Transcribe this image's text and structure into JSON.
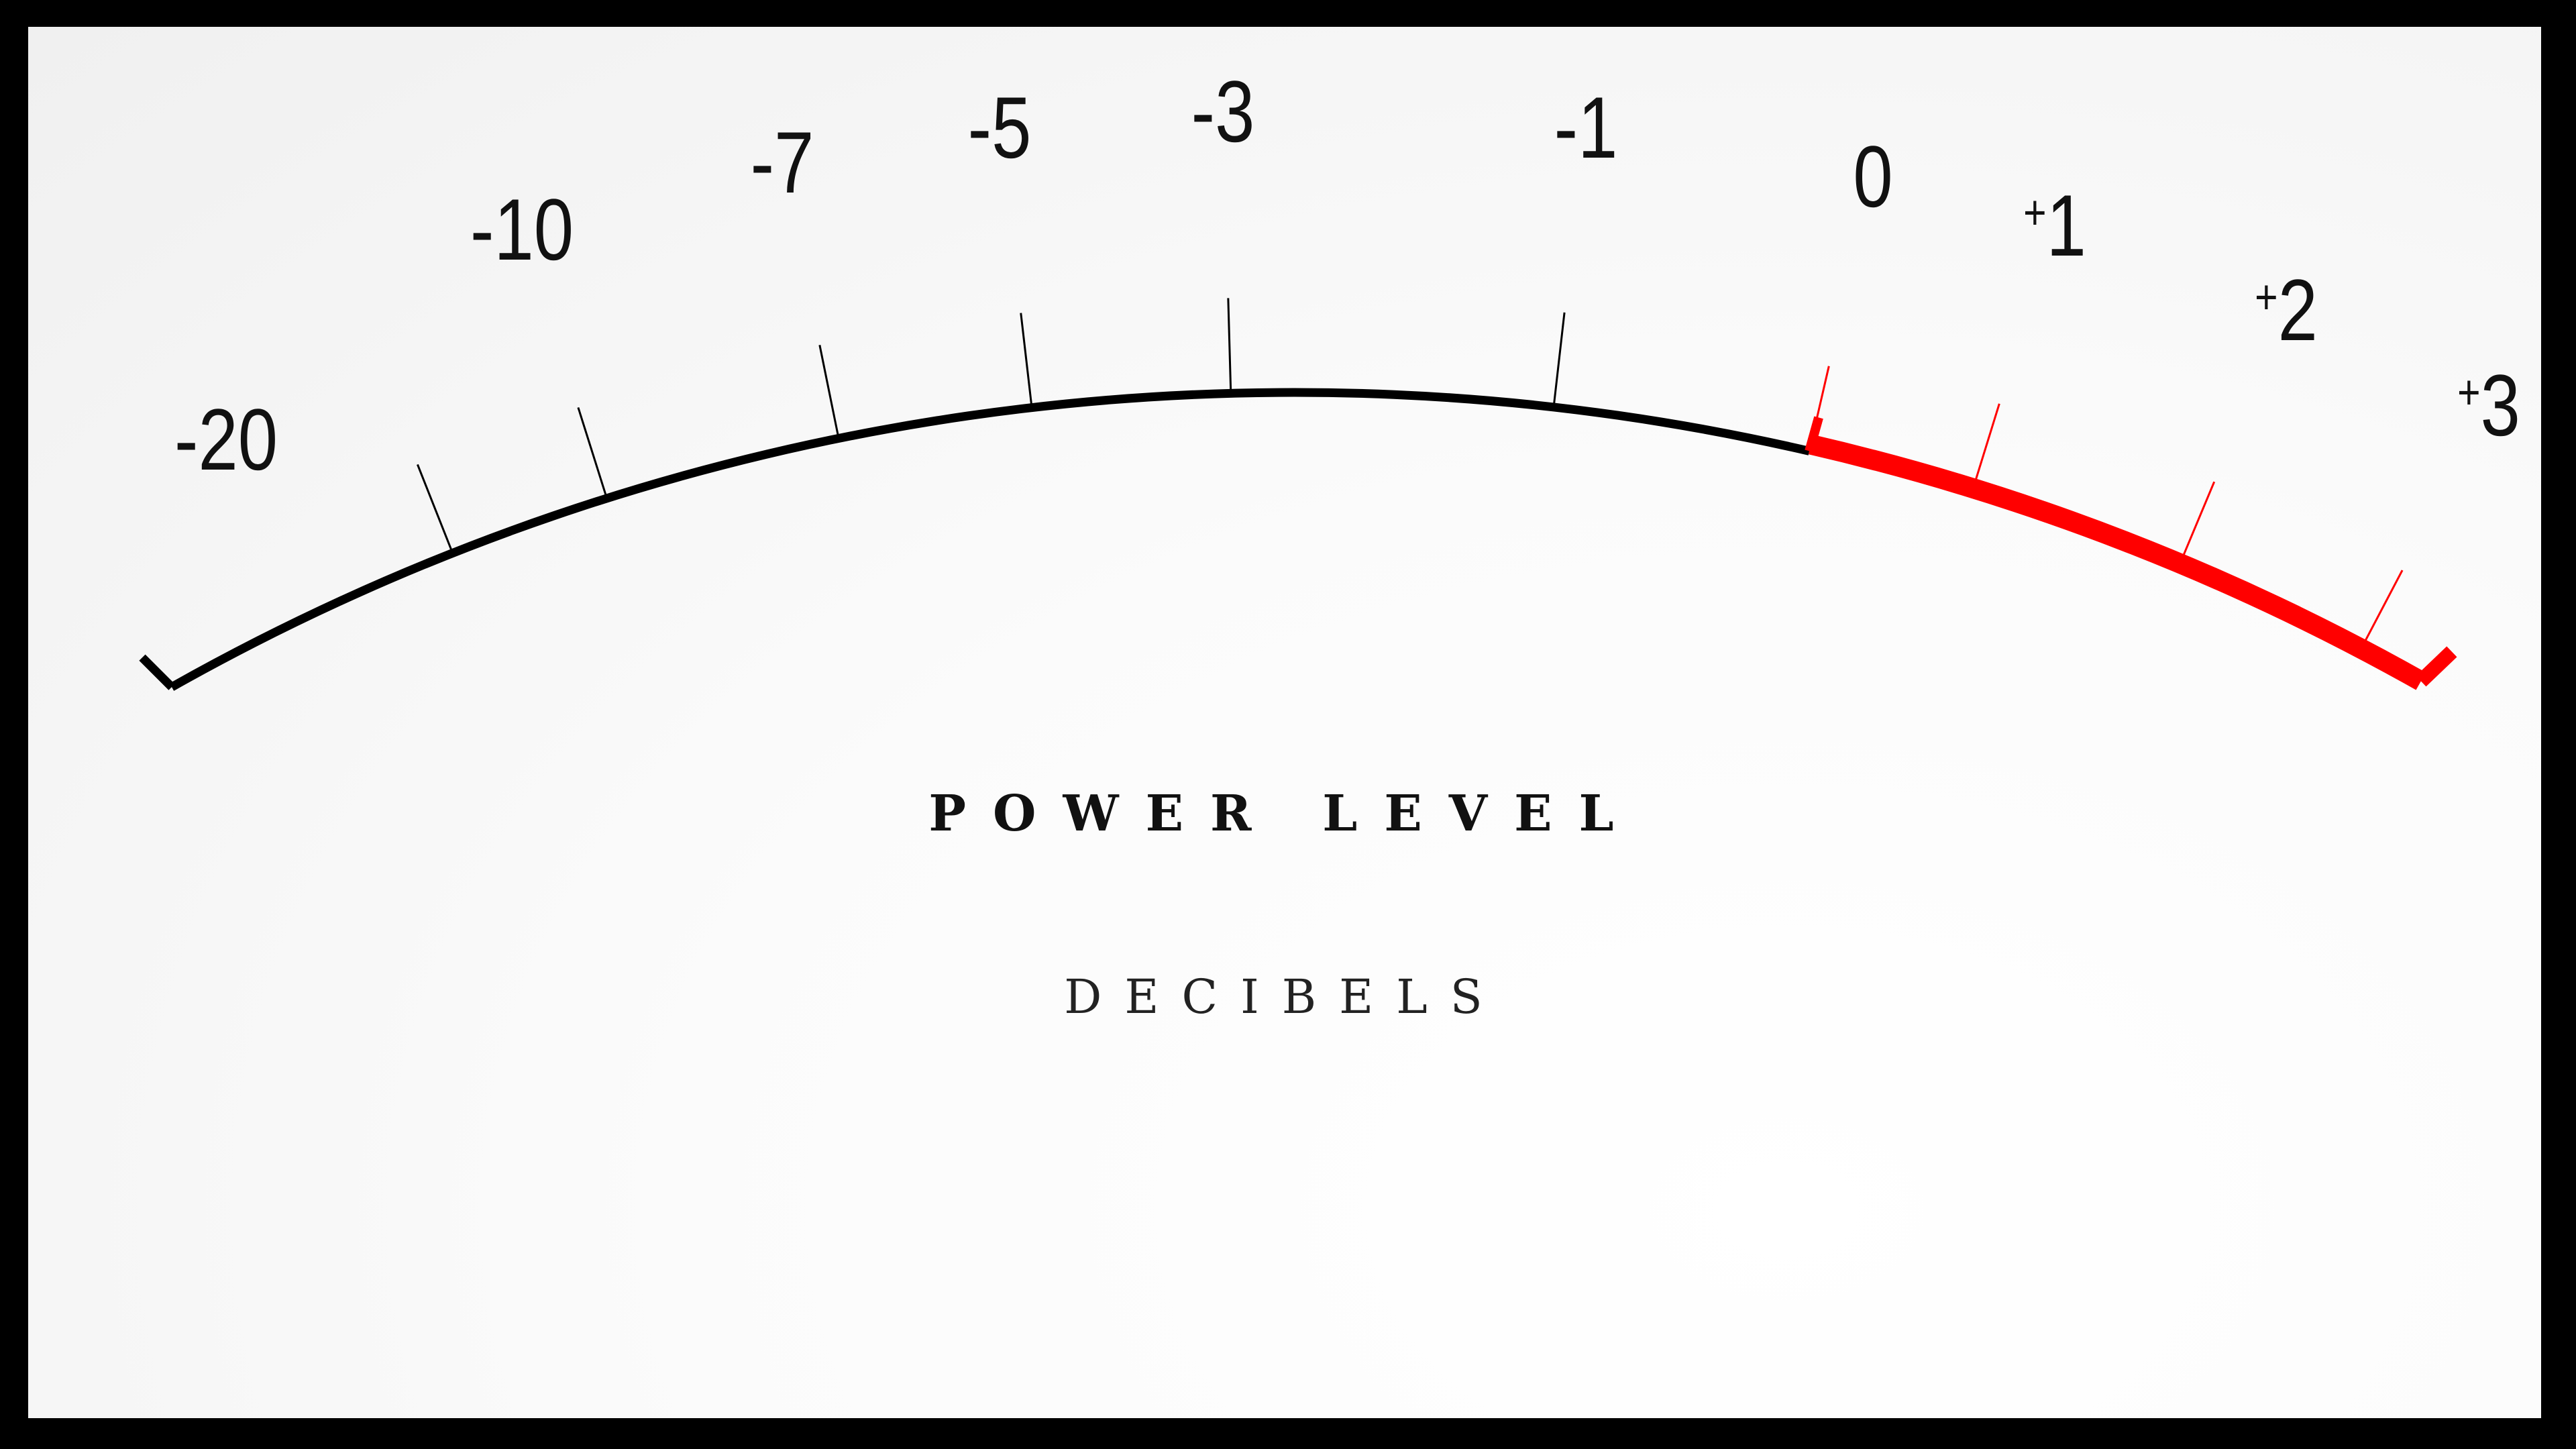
{
  "meter": {
    "title": "POWER LEVEL",
    "subtitle": "DECIBELS",
    "scale": [
      {
        "label": "-20",
        "sign": "",
        "num": "-20"
      },
      {
        "label": "-10",
        "sign": "",
        "num": "-10"
      },
      {
        "label": "-7",
        "sign": "",
        "num": "-7"
      },
      {
        "label": "-5",
        "sign": "",
        "num": "-5"
      },
      {
        "label": "-3",
        "sign": "",
        "num": "-3"
      },
      {
        "label": "-1",
        "sign": "",
        "num": "-1"
      },
      {
        "label": "0",
        "sign": "",
        "num": "0"
      },
      {
        "label": "+1",
        "sign": "+",
        "num": "1"
      },
      {
        "label": "+2",
        "sign": "+",
        "num": "2"
      },
      {
        "label": "+3",
        "sign": "+",
        "num": "3"
      }
    ],
    "colors": {
      "normal": "#000000",
      "overload": "#ff0000",
      "frame": "#000000",
      "face": "#f7f7f7"
    }
  }
}
